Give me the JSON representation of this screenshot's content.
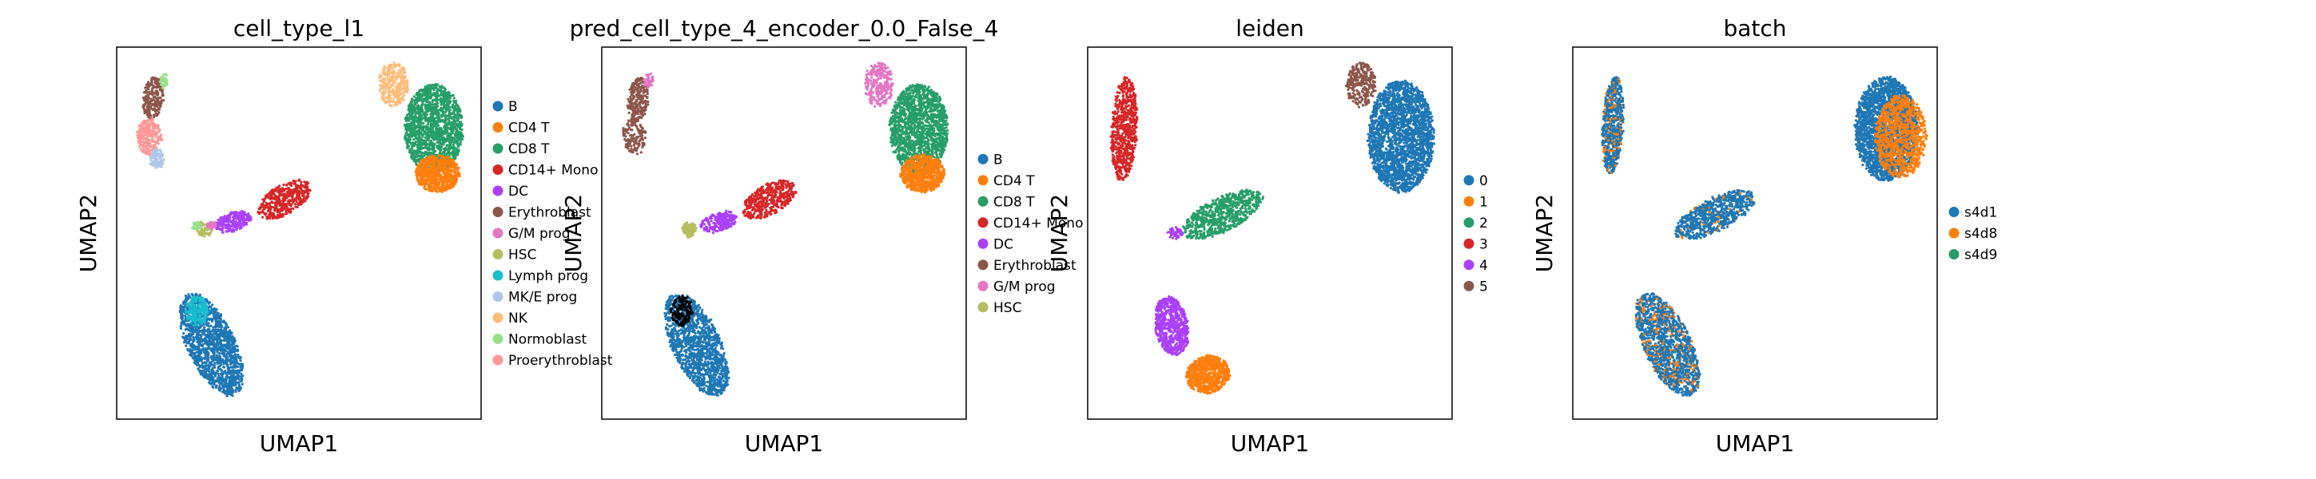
{
  "chart_data": [
    {
      "type": "scatter",
      "title": "cell_type_l1",
      "xlabel": "UMAP1",
      "ylabel": "UMAP2",
      "legend_position": "right",
      "grid": false,
      "categories": [
        {
          "name": "B",
          "color": "#1f77b4"
        },
        {
          "name": "CD4 T",
          "color": "#ff7f0e"
        },
        {
          "name": "CD8 T",
          "color": "#279e68"
        },
        {
          "name": "CD14+ Mono",
          "color": "#d62728"
        },
        {
          "name": "DC",
          "color": "#aa40fc"
        },
        {
          "name": "Erythroblast",
          "color": "#8c564b"
        },
        {
          "name": "G/M prog",
          "color": "#e377c2"
        },
        {
          "name": "HSC",
          "color": "#b5bd61"
        },
        {
          "name": "Lymph prog",
          "color": "#17becf"
        },
        {
          "name": "MK/E prog",
          "color": "#aec7e8"
        },
        {
          "name": "NK",
          "color": "#ffbb78"
        },
        {
          "name": "Normoblast",
          "color": "#98df8a"
        },
        {
          "name": "Proerythroblast",
          "color": "#ff9896"
        }
      ]
    },
    {
      "type": "scatter",
      "title": "pred_cell_type_4_encoder_0.0_False_4",
      "xlabel": "UMAP1",
      "ylabel": "UMAP2",
      "legend_position": "right",
      "grid": false,
      "categories": [
        {
          "name": "B",
          "color": "#1f77b4"
        },
        {
          "name": "CD4 T",
          "color": "#ff7f0e"
        },
        {
          "name": "CD8 T",
          "color": "#279e68"
        },
        {
          "name": "CD14+ Mono",
          "color": "#d62728"
        },
        {
          "name": "DC",
          "color": "#aa40fc"
        },
        {
          "name": "Erythroblast",
          "color": "#8c564b"
        },
        {
          "name": "G/M prog",
          "color": "#e377c2"
        },
        {
          "name": "HSC",
          "color": "#b5bd61"
        }
      ]
    },
    {
      "type": "scatter",
      "title": "leiden",
      "xlabel": "UMAP1",
      "ylabel": "UMAP2",
      "legend_position": "right",
      "grid": false,
      "categories": [
        {
          "name": "0",
          "color": "#1f77b4"
        },
        {
          "name": "1",
          "color": "#ff7f0e"
        },
        {
          "name": "2",
          "color": "#279e68"
        },
        {
          "name": "3",
          "color": "#d62728"
        },
        {
          "name": "4",
          "color": "#aa40fc"
        },
        {
          "name": "5",
          "color": "#8c564b"
        }
      ]
    },
    {
      "type": "scatter",
      "title": "batch",
      "xlabel": "UMAP1",
      "ylabel": "UMAP2",
      "legend_position": "right",
      "grid": false,
      "categories": [
        {
          "name": "s4d1",
          "color": "#1f77b4"
        },
        {
          "name": "s4d8",
          "color": "#ff7f0e"
        },
        {
          "name": "s4d9",
          "color": "#279e68"
        }
      ]
    }
  ]
}
